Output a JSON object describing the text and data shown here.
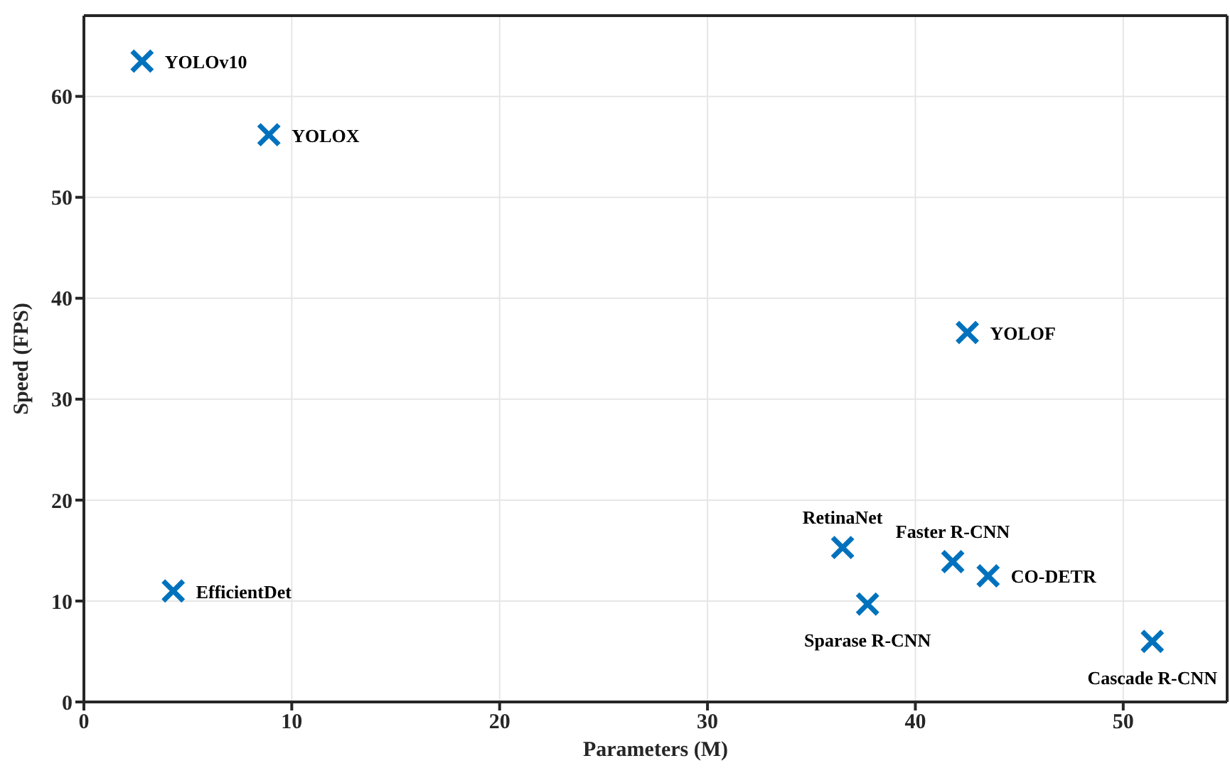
{
  "chart_data": {
    "type": "scatter",
    "xlabel": "Parameters (M)",
    "ylabel": "Speed (FPS)",
    "x": [
      2.8,
      8.9,
      4.3,
      42.5,
      36.5,
      37.7,
      41.8,
      43.5,
      51.4
    ],
    "values": [
      63.5,
      56.2,
      11.0,
      36.6,
      15.3,
      9.7,
      13.9,
      12.5,
      6.0
    ],
    "color": "#0072bd",
    "marker": "cross",
    "grid": true,
    "xlim": [
      0,
      55
    ],
    "xticks": [
      0,
      10,
      20,
      30,
      40,
      50
    ],
    "ylim": [
      0,
      68
    ],
    "yticks": [
      0,
      10,
      20,
      30,
      40,
      50,
      60
    ],
    "annotations": [
      {
        "text": "YOLOv10",
        "x": 2.8,
        "y": 63.5
      },
      {
        "text": "YOLOX",
        "x": 8.9,
        "y": 56.2
      },
      {
        "text": "EfficientDet",
        "x": 4.3,
        "y": 11.0
      },
      {
        "text": "YOLOF",
        "x": 42.5,
        "y": 36.6
      },
      {
        "text": "RetinaNet",
        "x": 36.5,
        "y": 15.3
      },
      {
        "text": "Sparase R-CNN",
        "x": 37.7,
        "y": 9.7
      },
      {
        "text": "Faster R-CNN",
        "x": 41.8,
        "y": 13.9
      },
      {
        "text": "CO-DETR",
        "x": 43.5,
        "y": 12.5
      },
      {
        "text": "Cascade R-CNN",
        "x": 51.4,
        "y": 6.0
      }
    ]
  }
}
